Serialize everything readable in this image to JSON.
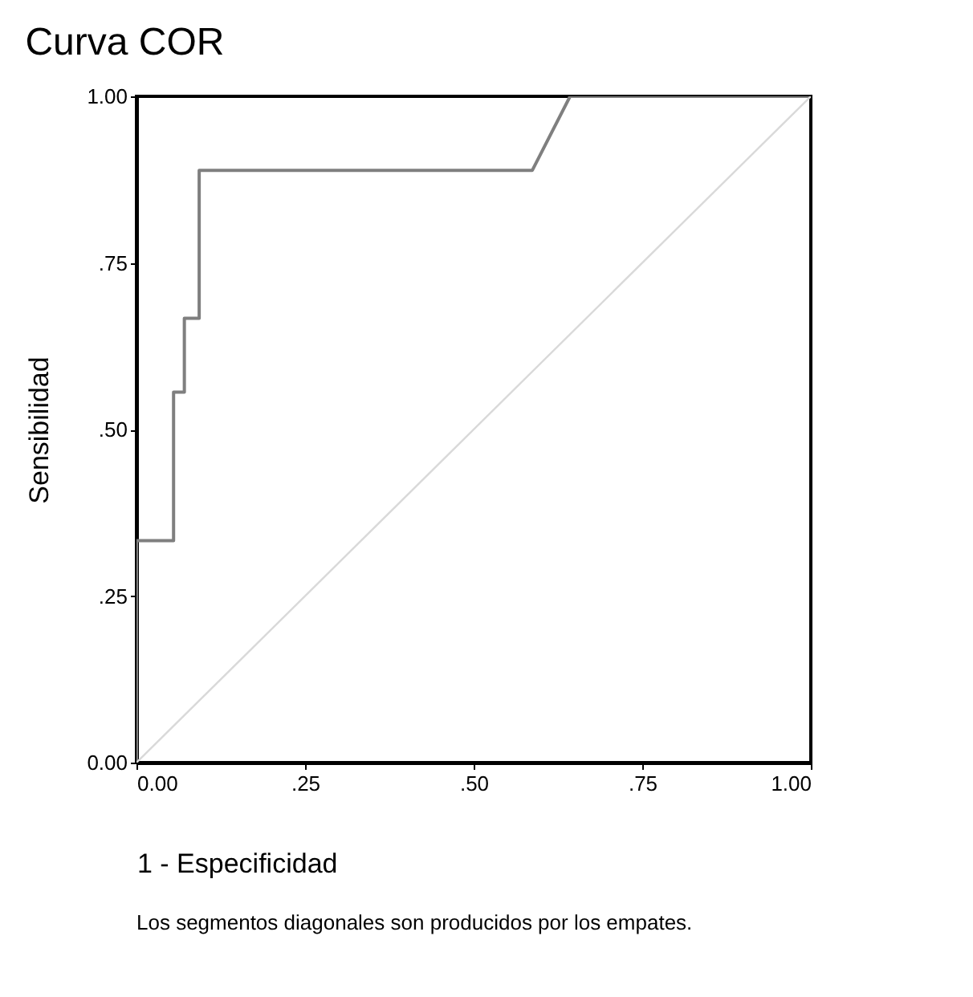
{
  "chart_data": {
    "type": "line",
    "title": "Curva COR",
    "xlabel": "1 - Especificidad",
    "ylabel": "Sensibilidad",
    "annotations": [
      "Los segmentos diagonales son producidos por los empates."
    ],
    "series": [
      {
        "color": "#7f7f7f",
        "x": [
          0,
          0,
          0.055,
          0.055,
          0.071,
          0.071,
          0.093,
          0.093,
          0.587,
          0.643,
          1
        ],
        "values": [
          0,
          0.333,
          0.333,
          0.556,
          0.556,
          0.667,
          0.667,
          0.889,
          0.889,
          1,
          1
        ]
      },
      {
        "type": "line",
        "color": "#d9d9d9",
        "x": [
          0,
          1
        ],
        "values": [
          0,
          1
        ]
      }
    ],
    "xlim": [
      0,
      1
    ],
    "ylim": [
      0,
      1
    ],
    "xticks": [
      {
        "value": 0,
        "label": "0.00"
      },
      {
        "value": 0.25,
        "label": ".25"
      },
      {
        "value": 0.5,
        "label": ".50"
      },
      {
        "value": 0.75,
        "label": ".75"
      },
      {
        "value": 1,
        "label": "1.00"
      }
    ],
    "yticks": [
      {
        "value": 0,
        "label": "0.00"
      },
      {
        "value": 0.25,
        "label": ".25"
      },
      {
        "value": 0.5,
        "label": ".50"
      },
      {
        "value": 0.75,
        "label": ".75"
      },
      {
        "value": 1,
        "label": "1.00"
      }
    ],
    "grid": false
  }
}
